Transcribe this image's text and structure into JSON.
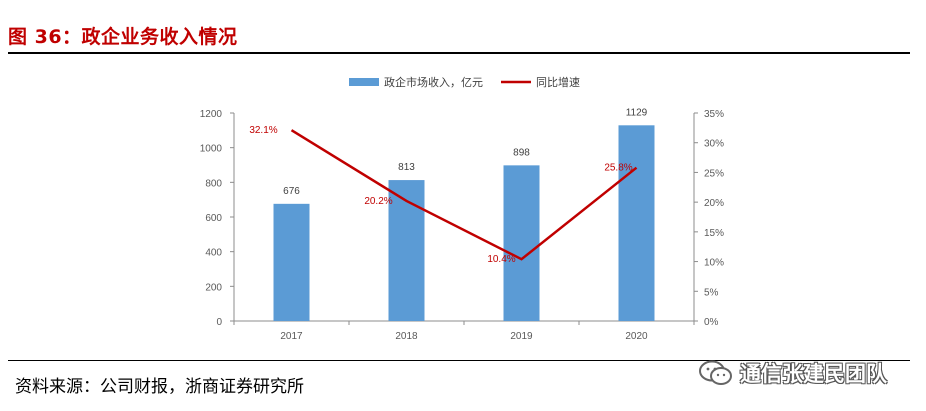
{
  "figure": {
    "title": "图 36：政企业务收入情况",
    "source": "资料来源：公司财报，浙商证券研究所",
    "watermark": "通信张建民团队"
  },
  "colors": {
    "bar": "#5b9bd5",
    "line": "#c00000",
    "title": "#c00000"
  },
  "chart_data": {
    "type": "bar",
    "categories": [
      "2017",
      "2018",
      "2019",
      "2020"
    ],
    "series": [
      {
        "name": "政企市场收入，亿元",
        "type": "bar",
        "axis": "left",
        "values": [
          676,
          813,
          898,
          1129
        ],
        "labels": [
          "676",
          "813",
          "898",
          "1129"
        ]
      },
      {
        "name": "同比增速",
        "type": "line",
        "axis": "right",
        "values": [
          32.1,
          20.2,
          10.4,
          25.8
        ],
        "labels": [
          "32.1%",
          "20.2%",
          "10.4%",
          "25.8%"
        ]
      }
    ],
    "y_left": {
      "ylim": [
        0,
        1200
      ],
      "ticks": [
        "0",
        "200",
        "400",
        "600",
        "800",
        "1000",
        "1200"
      ]
    },
    "y_right": {
      "ylim": [
        0,
        35
      ],
      "ticks": [
        "0%",
        "5%",
        "10%",
        "15%",
        "20%",
        "25%",
        "30%",
        "35%"
      ]
    },
    "legend": "top-center",
    "grid": false
  }
}
